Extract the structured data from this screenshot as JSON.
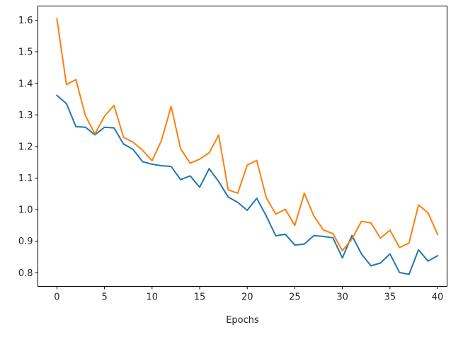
{
  "chart_data": {
    "type": "line",
    "title": "",
    "xlabel": "Epochs",
    "ylabel": "",
    "xlim": [
      -2,
      41
    ],
    "ylim": [
      0.757,
      1.645
    ],
    "xticks": [
      0,
      5,
      10,
      15,
      20,
      25,
      30,
      35,
      40
    ],
    "xtick_labels": [
      "0",
      "5",
      "10",
      "15",
      "20",
      "25",
      "30",
      "35",
      "40"
    ],
    "yticks": [
      0.8,
      0.9,
      1.0,
      1.1,
      1.2,
      1.3,
      1.4,
      1.5,
      1.6
    ],
    "ytick_labels": [
      "0.8",
      "0.9",
      "1.0",
      "1.1",
      "1.2",
      "1.3",
      "1.4",
      "1.5",
      "1.6"
    ],
    "grid": false,
    "legend": false,
    "x": [
      0,
      1,
      2,
      3,
      4,
      5,
      6,
      7,
      8,
      9,
      10,
      11,
      12,
      13,
      14,
      15,
      16,
      17,
      18,
      19,
      20,
      21,
      22,
      23,
      24,
      25,
      26,
      27,
      28,
      29,
      30,
      31,
      32,
      33,
      34,
      35,
      36,
      37,
      38,
      39,
      40
    ],
    "series": [
      {
        "color": "#1f77b4",
        "values": [
          1.362,
          1.336,
          1.263,
          1.261,
          1.237,
          1.261,
          1.259,
          1.208,
          1.191,
          1.152,
          1.144,
          1.139,
          1.137,
          1.095,
          1.107,
          1.071,
          1.13,
          1.089,
          1.04,
          1.023,
          0.998,
          1.036,
          0.98,
          0.917,
          0.922,
          0.888,
          0.891,
          0.918,
          0.915,
          0.911,
          0.847,
          0.918,
          0.86,
          0.822,
          0.831,
          0.86,
          0.801,
          0.795,
          0.873,
          0.837,
          0.854
        ]
      },
      {
        "color": "#ff7f0e",
        "values": [
          1.605,
          1.396,
          1.412,
          1.297,
          1.24,
          1.296,
          1.33,
          1.229,
          1.214,
          1.188,
          1.155,
          1.22,
          1.327,
          1.193,
          1.147,
          1.16,
          1.18,
          1.236,
          1.063,
          1.052,
          1.141,
          1.156,
          1.038,
          0.986,
          1.001,
          0.95,
          1.052,
          0.98,
          0.936,
          0.924,
          0.87,
          0.907,
          0.963,
          0.958,
          0.91,
          0.935,
          0.88,
          0.894,
          1.015,
          0.99,
          0.922
        ]
      }
    ]
  }
}
